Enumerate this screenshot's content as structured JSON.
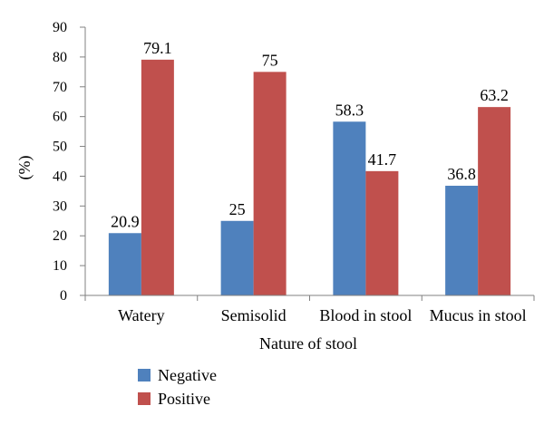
{
  "chart_data": {
    "type": "bar",
    "title": "",
    "xlabel": "Nature of stool",
    "ylabel": "(%)",
    "categories": [
      "Watery",
      "Semisolid",
      "Blood in stool",
      "Mucus in stool"
    ],
    "series": [
      {
        "name": "Negative",
        "color": "#4f81bd",
        "values": [
          20.9,
          25,
          58.3,
          36.8
        ],
        "labels": [
          "20.9",
          "25",
          "58.3",
          "36.8"
        ]
      },
      {
        "name": "Positive",
        "color": "#c0504d",
        "values": [
          79.1,
          75,
          41.7,
          63.2
        ],
        "labels": [
          "79.1",
          "75",
          "41.7",
          "63.2"
        ]
      }
    ],
    "ylim": [
      0,
      90
    ],
    "yticks": [
      "0",
      "10",
      "20",
      "30",
      "40",
      "50",
      "60",
      "70",
      "80",
      "90"
    ],
    "grid": false,
    "legend_position": "bottom-left"
  }
}
